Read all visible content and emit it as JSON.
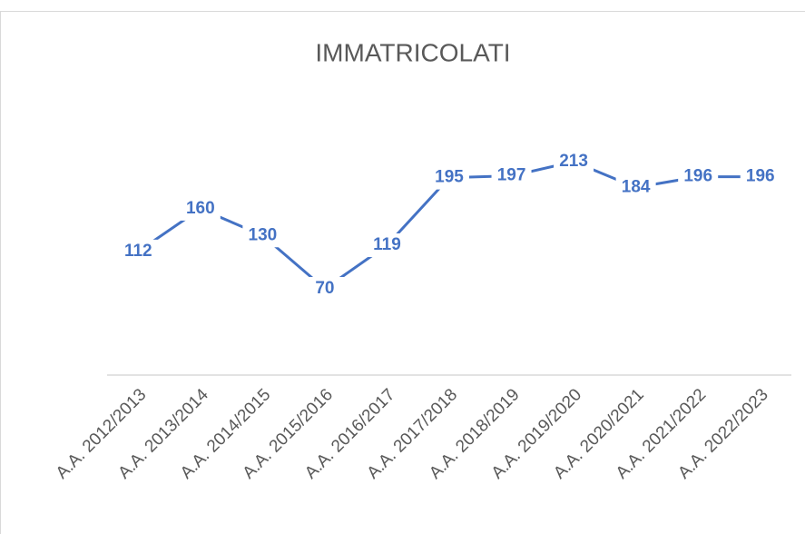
{
  "chart_data": {
    "type": "line",
    "title": "IMMATRICOLATI",
    "categories": [
      "A.A. 2012/2013",
      "A.A. 2013/2014",
      "A.A. 2014/2015",
      "A.A. 2015/2016",
      "A.A. 2016/2017",
      "A.A. 2017/2018",
      "A.A. 2018/2019",
      "A.A. 2019/2020",
      "A.A. 2020/2021",
      "A.A. 2021/2022",
      "A.A. 2022/2023"
    ],
    "series": [
      {
        "name": "IMMATRICOLATI",
        "color": "#4472c4",
        "values": [
          112,
          160,
          130,
          70,
          119,
          195,
          197,
          213,
          184,
          196,
          196
        ]
      }
    ]
  }
}
